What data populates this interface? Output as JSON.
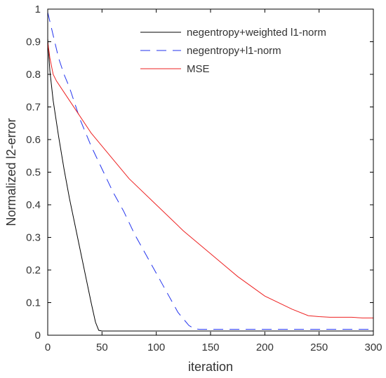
{
  "chart_data": {
    "type": "line",
    "title": "",
    "xlabel": "iteration",
    "ylabel": "Normalized l2-error",
    "xlim": [
      0,
      300
    ],
    "ylim": [
      0,
      1
    ],
    "xticks": [
      0,
      50,
      100,
      150,
      200,
      250,
      300
    ],
    "yticks": [
      0,
      0.1,
      0.2,
      0.3,
      0.4,
      0.5,
      0.6,
      0.7,
      0.8,
      0.9,
      1
    ],
    "legend_position": "top-right",
    "grid": false,
    "series": [
      {
        "name": "negentropy+weighted l1-norm",
        "color": "#000000",
        "style": "solid",
        "x": [
          0,
          2,
          5,
          10,
          15,
          20,
          25,
          30,
          35,
          40,
          44,
          47,
          50,
          100,
          200,
          300
        ],
        "y": [
          0.91,
          0.81,
          0.72,
          0.61,
          0.51,
          0.42,
          0.34,
          0.26,
          0.18,
          0.1,
          0.04,
          0.015,
          0.013,
          0.013,
          0.013,
          0.013
        ]
      },
      {
        "name": "negentropy+l1-norm",
        "color": "#2233ee",
        "style": "dashed",
        "x": [
          0,
          5,
          10,
          15,
          20,
          25,
          30,
          40,
          50,
          60,
          70,
          80,
          90,
          100,
          110,
          120,
          130,
          135,
          140,
          200,
          250,
          300
        ],
        "y": [
          0.99,
          0.92,
          0.85,
          0.8,
          0.76,
          0.71,
          0.66,
          0.58,
          0.51,
          0.44,
          0.38,
          0.31,
          0.25,
          0.19,
          0.13,
          0.07,
          0.03,
          0.02,
          0.018,
          0.018,
          0.018,
          0.018
        ]
      },
      {
        "name": "MSE",
        "color": "#ee2222",
        "style": "solid",
        "x": [
          0,
          2,
          5,
          8,
          10,
          15,
          20,
          30,
          40,
          50,
          60,
          75,
          100,
          125,
          150,
          175,
          200,
          225,
          240,
          250,
          260,
          270,
          280,
          290,
          300
        ],
        "y": [
          0.9,
          0.85,
          0.8,
          0.78,
          0.77,
          0.745,
          0.72,
          0.67,
          0.62,
          0.58,
          0.54,
          0.48,
          0.4,
          0.32,
          0.25,
          0.18,
          0.12,
          0.08,
          0.06,
          0.057,
          0.055,
          0.055,
          0.055,
          0.053,
          0.053
        ]
      }
    ]
  }
}
